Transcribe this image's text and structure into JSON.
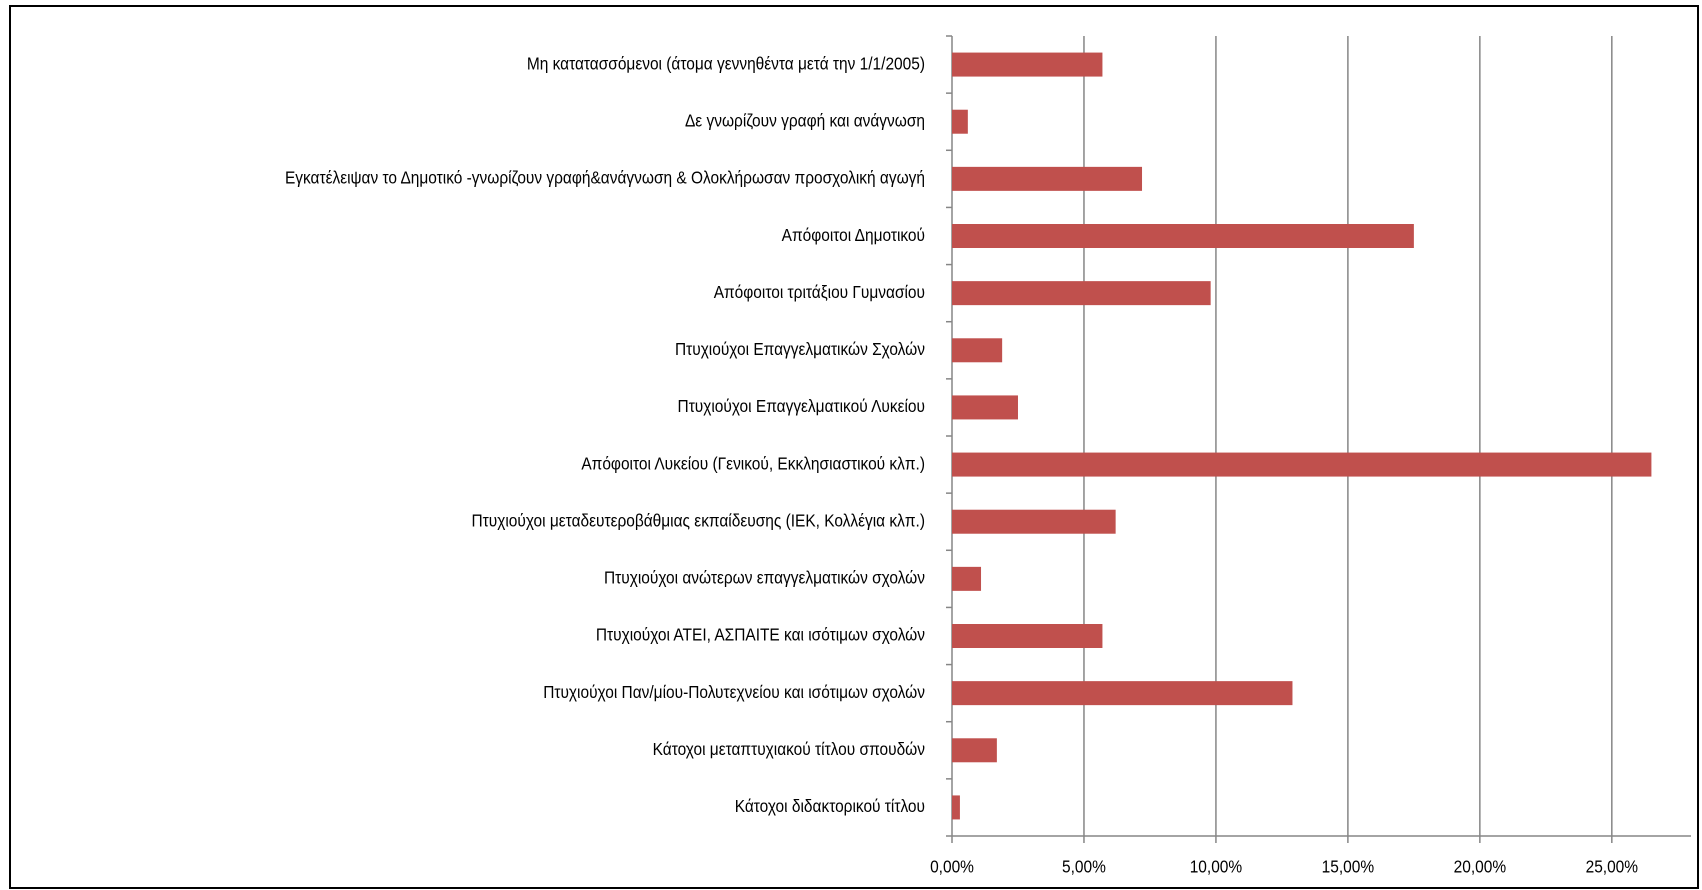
{
  "chart_data": {
    "type": "bar",
    "orientation": "horizontal",
    "categories": [
      "Μη κατατασσόμενοι (άτομα γεννηθέντα μετά την 1/1/2005)",
      "Δε γνωρίζουν γραφή και ανάγνωση",
      "Εγκατέλειψαν το Δημοτικό -γνωρίζουν γραφή&ανάγνωση  & Ολοκλήρωσαν προσχολική αγωγή",
      "Απόφοιτοι Δημοτικού",
      "Απόφοιτοι τριτάξιου Γυμνασίου",
      "Πτυχιούχοι Επαγγελματικών Σχολών",
      "Πτυχιούχοι Επαγγελματικού Λυκείου",
      "Απόφοιτοι Λυκείου (Γενικού,  Εκκλησιαστικού  κλπ.)",
      "Πτυχιούχοι μεταδευτεροβάθμιας εκπαίδευσης (ΙΕΚ, Κολλέγια κλπ.)",
      "Πτυχιούχοι ανώτερων επαγγελματικών σχολών",
      "Πτυχιούχοι ΑΤΕΙ, ΑΣΠΑΙΤΕ και ισότιμων σχολών",
      "Πτυχιούχοι Παν/μίου-Πολυτεχνείου και ισότιμων σχολών",
      "Κάτοχοι μεταπτυχιακού τίτλου σπουδών",
      "Κάτοχοι διδακτορικού  τίτλου"
    ],
    "values": [
      5.7,
      0.6,
      7.2,
      17.5,
      9.8,
      1.9,
      2.5,
      26.5,
      6.2,
      1.1,
      5.7,
      12.9,
      1.7,
      0.3
    ],
    "color": "#c0504d",
    "xlim": [
      0,
      28
    ],
    "xticks": [
      {
        "value": 0,
        "label": "0,00%"
      },
      {
        "value": 5,
        "label": "5,00%"
      },
      {
        "value": 10,
        "label": "10,00%"
      },
      {
        "value": 15,
        "label": "15,00%"
      },
      {
        "value": 20,
        "label": "20,00%"
      },
      {
        "value": 25,
        "label": "25,00%"
      }
    ],
    "grid": true
  }
}
